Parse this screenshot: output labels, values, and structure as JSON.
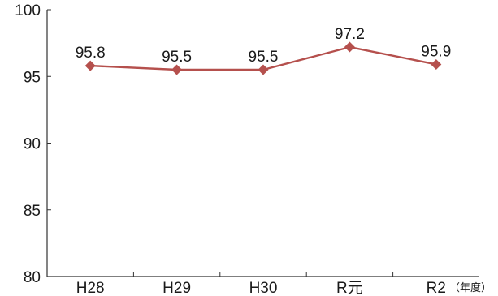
{
  "chart_data": {
    "type": "line",
    "title": "",
    "xlabel": "",
    "ylabel": "",
    "x_unit": "（年度）",
    "categories": [
      "H28",
      "H29",
      "H30",
      "R元",
      "R2"
    ],
    "series": [
      {
        "values": [
          95.8,
          95.5,
          95.5,
          97.2,
          95.9
        ],
        "color": "#b5504d",
        "marker": "diamond"
      }
    ],
    "data_labels": [
      "95.8",
      "95.5",
      "95.5",
      "97.2",
      "95.9"
    ],
    "ylim": [
      80,
      100
    ],
    "yticks": [
      80,
      85,
      90,
      95,
      100
    ],
    "grid": false,
    "legend": "none"
  }
}
